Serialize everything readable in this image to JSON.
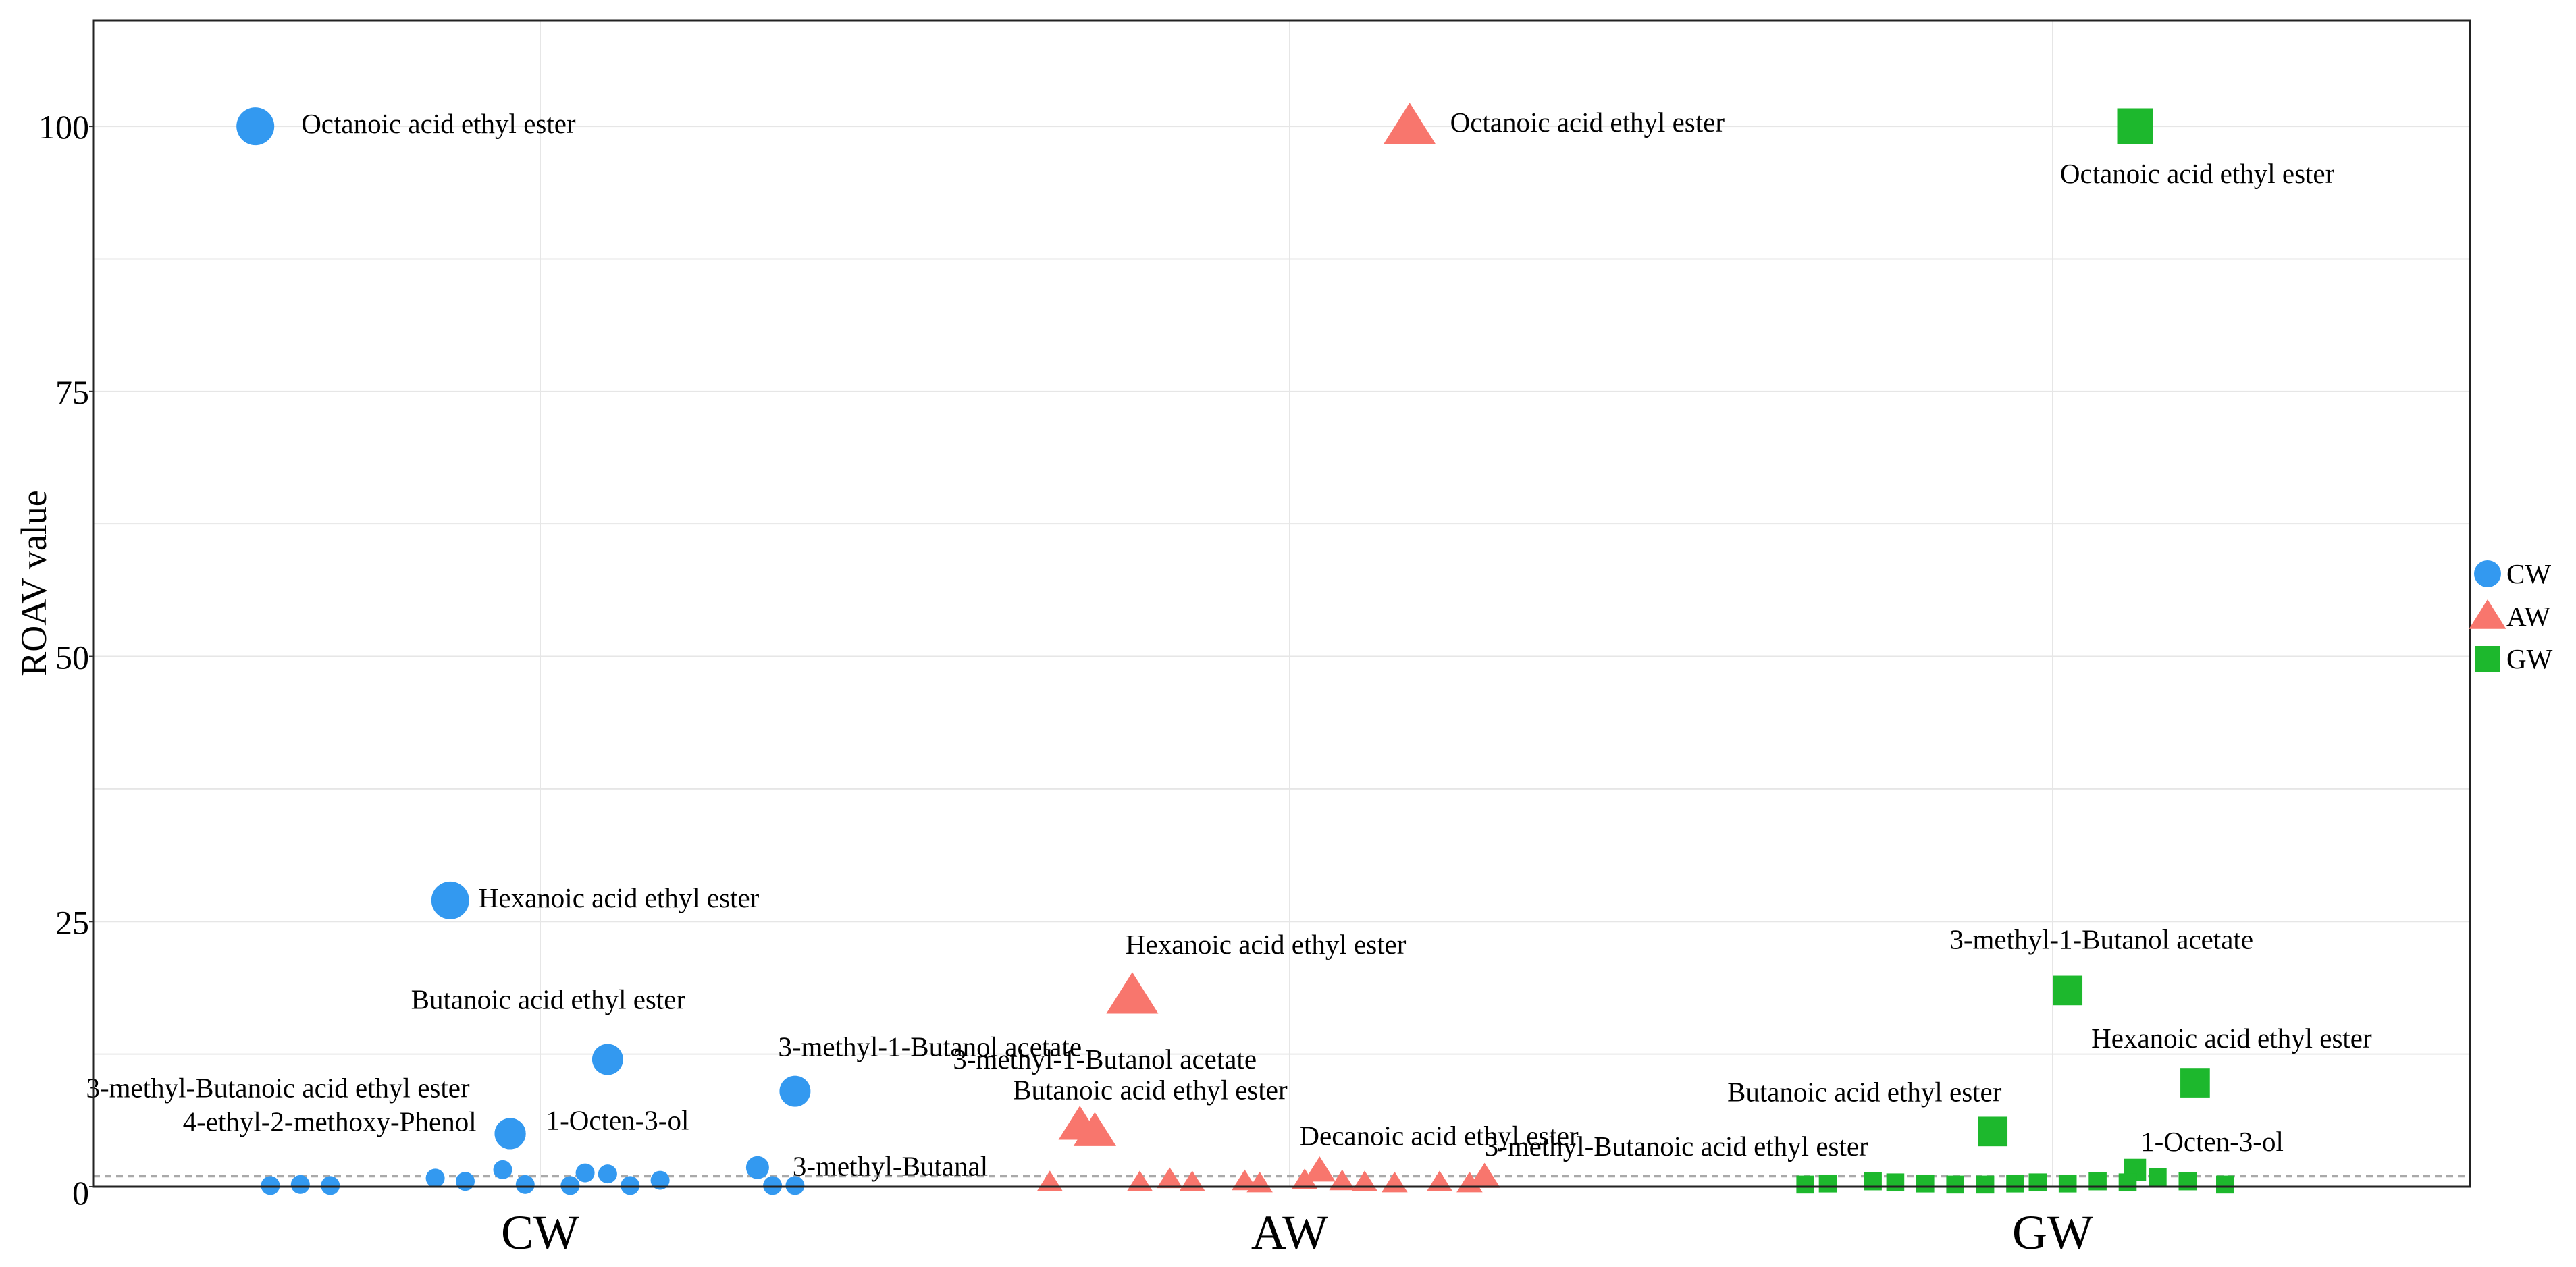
{
  "chart_data": {
    "type": "scatter",
    "title": "",
    "xlabel": "",
    "ylabel": "ROAV value",
    "categories": [
      "CW",
      "AW",
      "GW"
    ],
    "ylim": [
      0,
      110
    ],
    "yticks": [
      0,
      25,
      50,
      75,
      100
    ],
    "threshold": 1,
    "legend": {
      "position": "right",
      "entries": [
        {
          "name": "CW",
          "shape": "circle",
          "color": "#3399f0"
        },
        {
          "name": "AW",
          "shape": "triangle",
          "color": "#f8766d"
        },
        {
          "name": "GW",
          "shape": "square",
          "color": "#1db82d"
        }
      ]
    },
    "series": [
      {
        "name": "CW",
        "shape": "circle",
        "color": "#3399f0",
        "points": [
          {
            "x": -0.38,
            "y": 100,
            "label": "Octanoic acid ethyl ester",
            "size": "large"
          },
          {
            "x": -0.12,
            "y": 27,
            "label": "Hexanoic acid ethyl ester",
            "size": "large"
          },
          {
            "x": 0.09,
            "y": 12,
            "label": "Butanoic acid ethyl ester",
            "size": "medium"
          },
          {
            "x": 0.34,
            "y": 9,
            "label": "3-methyl-1-Butanol acetate",
            "size": "medium"
          },
          {
            "x": -0.04,
            "y": 5,
            "label": "3-methyl-Butanoic acid ethyl ester",
            "size": "medium"
          },
          {
            "x": -0.04,
            "y": 5,
            "label": "4-ethyl-2-methoxy-Phenol",
            "size": "medium"
          },
          {
            "x": -0.04,
            "y": 5,
            "label": "1-Octen-3-ol",
            "size": "medium"
          },
          {
            "x": 0.29,
            "y": 1.8,
            "label": "3-methyl-Butanal",
            "size": "small"
          },
          {
            "x": -0.05,
            "y": 1.6
          },
          {
            "x": 0.06,
            "y": 1.3
          },
          {
            "x": 0.09,
            "y": 1.2
          },
          {
            "x": -0.14,
            "y": 0.8
          },
          {
            "x": -0.1,
            "y": 0.5
          },
          {
            "x": 0.16,
            "y": 0.6
          },
          {
            "x": -0.36,
            "y": 0.1
          },
          {
            "x": -0.32,
            "y": 0.2
          },
          {
            "x": -0.28,
            "y": 0.1
          },
          {
            "x": -0.02,
            "y": 0.2
          },
          {
            "x": 0.04,
            "y": 0.1
          },
          {
            "x": 0.12,
            "y": 0.1
          },
          {
            "x": 0.31,
            "y": 0.1
          },
          {
            "x": 0.34,
            "y": 0.1
          }
        ]
      },
      {
        "name": "AW",
        "shape": "triangle",
        "color": "#f8766d",
        "points": [
          {
            "x": 0.16,
            "y": 100,
            "label": "Octanoic acid ethyl ester",
            "size": "large"
          },
          {
            "x": -0.21,
            "y": 18,
            "label": "Hexanoic acid ethyl ester",
            "size": "large"
          },
          {
            "x": -0.28,
            "y": 5.8,
            "label": "3-methyl-1-Butanol acetate",
            "size": "medium"
          },
          {
            "x": -0.26,
            "y": 5.2,
            "label": "Butanoic acid ethyl ester",
            "size": "medium"
          },
          {
            "x": 0.04,
            "y": 1.5,
            "label": "Decanoic acid ethyl ester",
            "size": "small"
          },
          {
            "x": 0.26,
            "y": 0.9,
            "label": "3-methyl-Butanoic acid ethyl ester",
            "size": "small"
          },
          {
            "x": -0.32,
            "y": 0.4
          },
          {
            "x": -0.2,
            "y": 0.4
          },
          {
            "x": -0.16,
            "y": 0.7
          },
          {
            "x": -0.13,
            "y": 0.4
          },
          {
            "x": -0.06,
            "y": 0.5
          },
          {
            "x": -0.04,
            "y": 0.3
          },
          {
            "x": 0.02,
            "y": 0.6
          },
          {
            "x": 0.07,
            "y": 0.5
          },
          {
            "x": 0.1,
            "y": 0.4
          },
          {
            "x": 0.14,
            "y": 0.3
          },
          {
            "x": 0.2,
            "y": 0.4
          },
          {
            "x": 0.24,
            "y": 0.3
          }
        ]
      },
      {
        "name": "GW",
        "shape": "square",
        "color": "#1db82d",
        "points": [
          {
            "x": 0.11,
            "y": 100,
            "label": "Octanoic acid ethyl ester",
            "size": "large"
          },
          {
            "x": 0.02,
            "y": 18.5,
            "label": "3-methyl-1-Butanol acetate",
            "size": "medium"
          },
          {
            "x": 0.19,
            "y": 9.8,
            "label": "Hexanoic acid ethyl ester",
            "size": "medium"
          },
          {
            "x": -0.08,
            "y": 5.2,
            "label": "Butanoic acid ethyl ester",
            "size": "medium"
          },
          {
            "x": 0.11,
            "y": 1.6,
            "label": "1-Octen-3-ol",
            "size": "small"
          },
          {
            "x": -0.33,
            "y": 0.2
          },
          {
            "x": -0.3,
            "y": 0.3
          },
          {
            "x": -0.24,
            "y": 0.5
          },
          {
            "x": -0.21,
            "y": 0.4
          },
          {
            "x": -0.17,
            "y": 0.3
          },
          {
            "x": -0.13,
            "y": 0.2
          },
          {
            "x": -0.09,
            "y": 0.2
          },
          {
            "x": -0.05,
            "y": 0.3
          },
          {
            "x": -0.02,
            "y": 0.4
          },
          {
            "x": 0.02,
            "y": 0.3
          },
          {
            "x": 0.06,
            "y": 0.5
          },
          {
            "x": 0.1,
            "y": 0.4
          },
          {
            "x": 0.14,
            "y": 0.9
          },
          {
            "x": 0.18,
            "y": 0.5
          },
          {
            "x": 0.23,
            "y": 0.2
          }
        ]
      }
    ]
  }
}
